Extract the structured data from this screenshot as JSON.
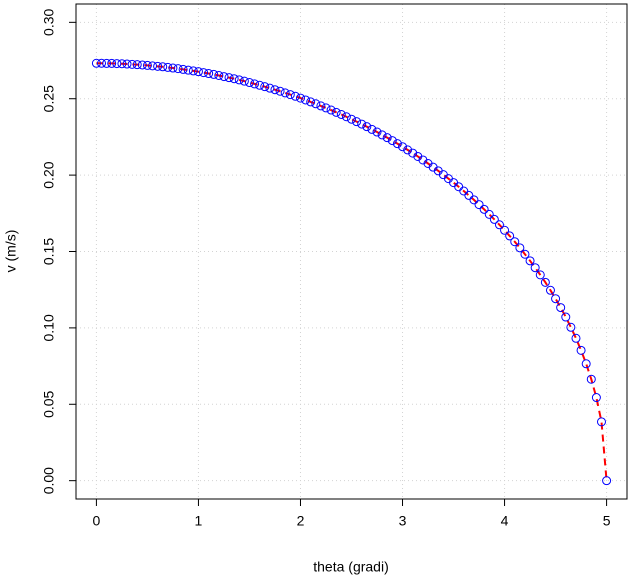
{
  "chart_data": {
    "type": "scatter",
    "x_label": "theta (gradi)",
    "y_label": "v (m/s)",
    "xlim": [
      -0.2,
      5.2
    ],
    "ylim": [
      -0.012,
      0.312
    ],
    "xticks": [
      0,
      1,
      2,
      3,
      4,
      5
    ],
    "yticks": [
      {
        "value": 0,
        "label": "0.00"
      },
      {
        "value": 0.05,
        "label": "0.05"
      },
      {
        "value": 0.1,
        "label": "0.10"
      },
      {
        "value": 0.15,
        "label": "0.15"
      },
      {
        "value": 0.2,
        "label": "0.20"
      },
      {
        "value": 0.25,
        "label": "0.25"
      },
      {
        "value": 0.3,
        "label": "0.30"
      }
    ],
    "grid": true,
    "series": [
      {
        "color": "#0000ff",
        "line_color": "#ff0000",
        "x": [
          0,
          0.05,
          0.1,
          0.15,
          0.2,
          0.25,
          0.3,
          0.35,
          0.4,
          0.45,
          0.5,
          0.55,
          0.6,
          0.65,
          0.7,
          0.75,
          0.8,
          0.85,
          0.9,
          0.95,
          1,
          1.05,
          1.1,
          1.15,
          1.2,
          1.25,
          1.3,
          1.35,
          1.4,
          1.45,
          1.5,
          1.55,
          1.6,
          1.65,
          1.7,
          1.75,
          1.8,
          1.85,
          1.9,
          1.95,
          2,
          2.05,
          2.1,
          2.15,
          2.2,
          2.25,
          2.3,
          2.35,
          2.4,
          2.45,
          2.5,
          2.55,
          2.6,
          2.65,
          2.7,
          2.75,
          2.8,
          2.85,
          2.9,
          2.95,
          3,
          3.05,
          3.1,
          3.15,
          3.2,
          3.25,
          3.3,
          3.35,
          3.4,
          3.45,
          3.5,
          3.55,
          3.6,
          3.65,
          3.7,
          3.75,
          3.8,
          3.85,
          3.9,
          3.95,
          4,
          4.05,
          4.1,
          4.15,
          4.2,
          4.25,
          4.3,
          4.35,
          4.4,
          4.45,
          4.5,
          4.55,
          4.6,
          4.65,
          4.7,
          4.75,
          4.8,
          4.85,
          4.9,
          4.95,
          5
        ],
        "values": [
          0.2732,
          0.2732,
          0.2731,
          0.2731,
          0.273,
          0.2729,
          0.2727,
          0.2725,
          0.2723,
          0.2721,
          0.2718,
          0.2715,
          0.2712,
          0.2709,
          0.2705,
          0.2701,
          0.2697,
          0.2692,
          0.2687,
          0.2682,
          0.2677,
          0.2671,
          0.2665,
          0.2659,
          0.2652,
          0.2645,
          0.2638,
          0.2631,
          0.2623,
          0.2615,
          0.2606,
          0.2597,
          0.2588,
          0.2579,
          0.2569,
          0.2559,
          0.2549,
          0.2538,
          0.2527,
          0.2516,
          0.2504,
          0.2492,
          0.2479,
          0.2467,
          0.2453,
          0.244,
          0.2426,
          0.2411,
          0.2397,
          0.2382,
          0.2366,
          0.235,
          0.2334,
          0.2317,
          0.2299,
          0.2282,
          0.2263,
          0.2245,
          0.2226,
          0.2206,
          0.2186,
          0.2165,
          0.2144,
          0.2122,
          0.2099,
          0.2076,
          0.2052,
          0.2028,
          0.2003,
          0.1977,
          0.1951,
          0.1924,
          0.1896,
          0.1867,
          0.1838,
          0.1807,
          0.1776,
          0.1743,
          0.171,
          0.1675,
          0.1639,
          0.1602,
          0.1564,
          0.1524,
          0.1482,
          0.1439,
          0.1394,
          0.1347,
          0.1298,
          0.1246,
          0.1191,
          0.1133,
          0.1071,
          0.1004,
          0.0932,
          0.0853,
          0.0765,
          0.0664,
          0.0544,
          0.0385,
          0
        ]
      }
    ]
  }
}
